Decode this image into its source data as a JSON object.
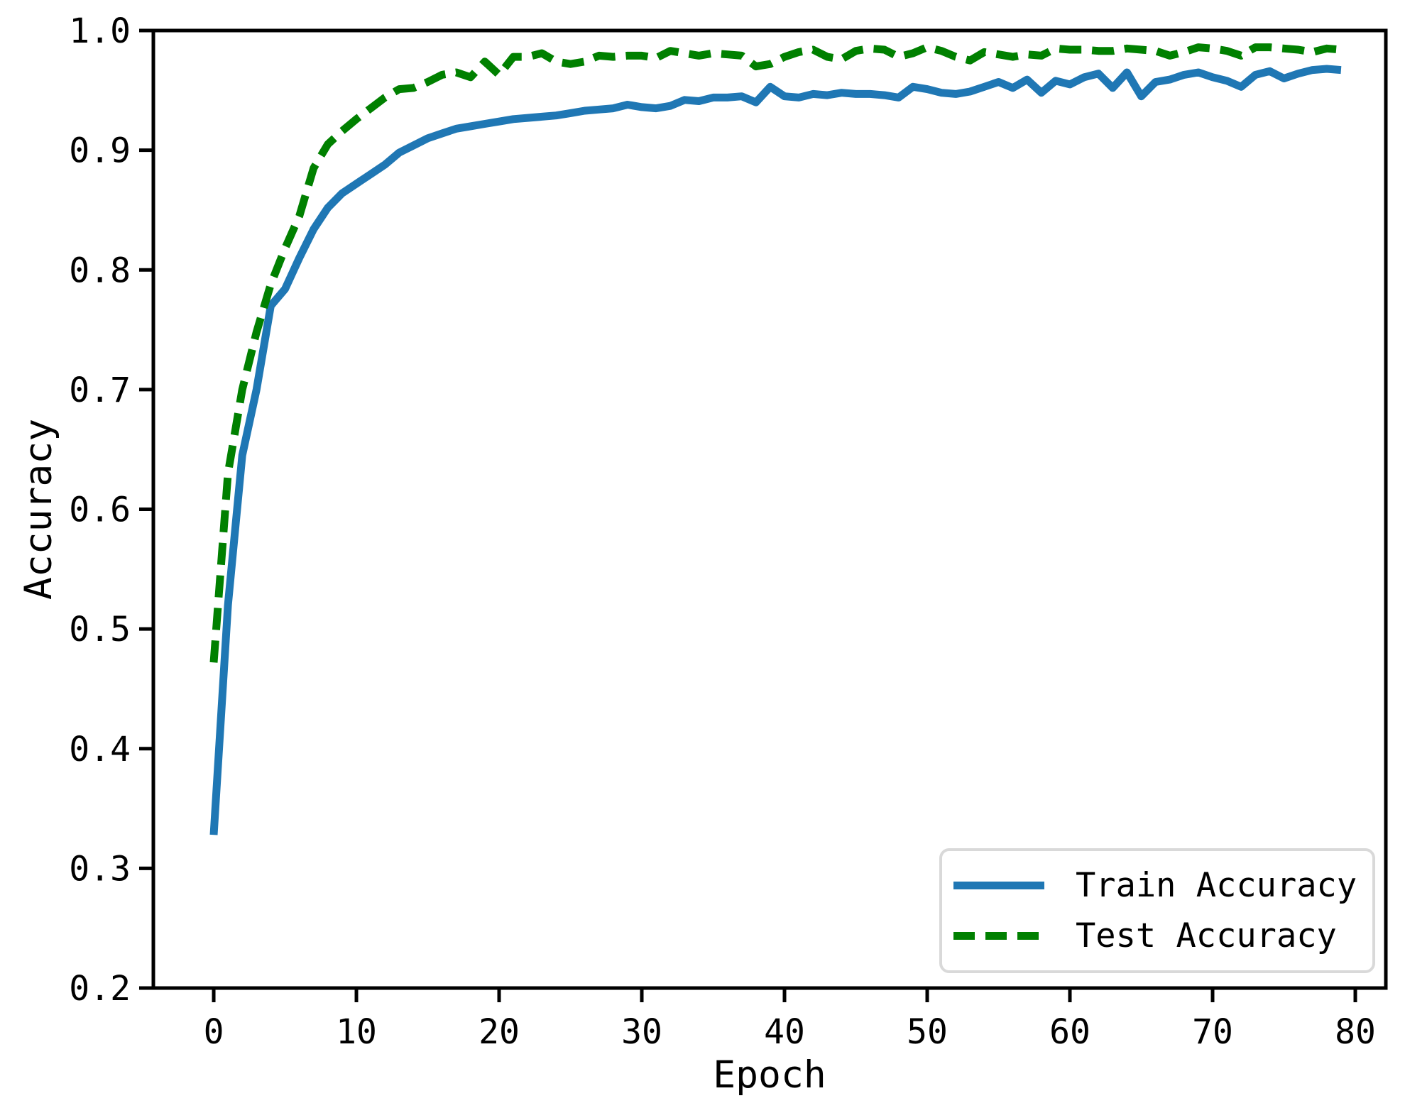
{
  "figure": {
    "background": "#ffffff",
    "text_color": "#000000",
    "spine_color": "#000000"
  },
  "axes": {
    "xlabel": "Epoch",
    "ylabel": "Accuracy",
    "x_tick_labels": [
      "0",
      "10",
      "20",
      "30",
      "40",
      "50",
      "60",
      "70",
      "80"
    ],
    "y_tick_labels": [
      "0.2",
      "0.3",
      "0.4",
      "0.5",
      "0.6",
      "0.7",
      "0.8",
      "0.9",
      "1.0"
    ]
  },
  "legend": {
    "items": [
      {
        "label": "Train Accuracy",
        "color": "#1f77b4",
        "line_style": "solid"
      },
      {
        "label": "Test Accuracy",
        "color": "#008000",
        "line_style": "dashed"
      }
    ]
  },
  "chart_data": {
    "type": "line",
    "title": "",
    "xlabel": "Epoch",
    "ylabel": "Accuracy",
    "xlim": [
      -4.23,
      82.14
    ],
    "ylim": [
      0.2,
      1.0
    ],
    "x_ticks": [
      0,
      10,
      20,
      30,
      40,
      50,
      60,
      70,
      80
    ],
    "y_ticks": [
      0.2,
      0.3,
      0.4,
      0.5,
      0.6,
      0.7,
      0.8,
      0.9,
      1.0
    ],
    "grid": false,
    "legend_position": "lower right",
    "x": [
      0,
      1,
      2,
      3,
      4,
      5,
      6,
      7,
      8,
      9,
      10,
      11,
      12,
      13,
      14,
      15,
      16,
      17,
      18,
      19,
      20,
      21,
      22,
      23,
      24,
      25,
      26,
      27,
      28,
      29,
      30,
      31,
      32,
      33,
      34,
      35,
      36,
      37,
      38,
      39,
      40,
      41,
      42,
      43,
      44,
      45,
      46,
      47,
      48,
      49,
      50,
      51,
      52,
      53,
      54,
      55,
      56,
      57,
      58,
      59,
      60,
      61,
      62,
      63,
      64,
      65,
      66,
      67,
      68,
      69,
      70,
      71,
      72,
      73,
      74,
      75,
      76,
      77,
      78,
      79
    ],
    "series": [
      {
        "name": "Train Accuracy",
        "color": "#1f77b4",
        "style": "solid",
        "linewidth": 11,
        "values": [
          0.328,
          0.52,
          0.645,
          0.7,
          0.77,
          0.784,
          0.81,
          0.834,
          0.852,
          0.864,
          0.872,
          0.88,
          0.888,
          0.898,
          0.904,
          0.91,
          0.914,
          0.918,
          0.92,
          0.922,
          0.924,
          0.926,
          0.927,
          0.928,
          0.929,
          0.931,
          0.933,
          0.934,
          0.935,
          0.938,
          0.936,
          0.935,
          0.937,
          0.942,
          0.941,
          0.944,
          0.944,
          0.945,
          0.94,
          0.953,
          0.945,
          0.944,
          0.947,
          0.946,
          0.948,
          0.947,
          0.947,
          0.946,
          0.944,
          0.953,
          0.951,
          0.948,
          0.947,
          0.949,
          0.953,
          0.957,
          0.952,
          0.959,
          0.948,
          0.958,
          0.955,
          0.961,
          0.964,
          0.952,
          0.965,
          0.945,
          0.957,
          0.959,
          0.963,
          0.965,
          0.961,
          0.958,
          0.953,
          0.963,
          0.966,
          0.96,
          0.964,
          0.967,
          0.968,
          0.967
        ]
      },
      {
        "name": "Test Accuracy",
        "color": "#008000",
        "style": "dashed",
        "linewidth": 11,
        "values": [
          0.472,
          0.63,
          0.7,
          0.748,
          0.788,
          0.818,
          0.845,
          0.885,
          0.905,
          0.916,
          0.926,
          0.935,
          0.944,
          0.951,
          0.952,
          0.957,
          0.963,
          0.965,
          0.961,
          0.974,
          0.963,
          0.978,
          0.978,
          0.981,
          0.974,
          0.972,
          0.974,
          0.979,
          0.978,
          0.979,
          0.979,
          0.977,
          0.983,
          0.981,
          0.979,
          0.981,
          0.98,
          0.979,
          0.97,
          0.972,
          0.978,
          0.982,
          0.984,
          0.978,
          0.976,
          0.983,
          0.985,
          0.984,
          0.978,
          0.981,
          0.986,
          0.983,
          0.978,
          0.975,
          0.982,
          0.98,
          0.978,
          0.98,
          0.979,
          0.985,
          0.984,
          0.984,
          0.983,
          0.983,
          0.985,
          0.984,
          0.983,
          0.979,
          0.982,
          0.986,
          0.985,
          0.983,
          0.979,
          0.986,
          0.986,
          0.985,
          0.984,
          0.982,
          0.985,
          0.984
        ]
      }
    ]
  }
}
